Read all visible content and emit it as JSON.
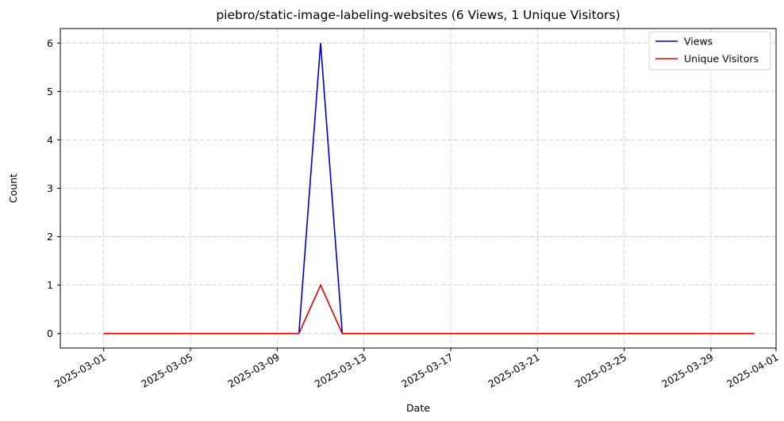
{
  "chart_data": {
    "type": "line",
    "title": "piebro/static-image-labeling-websites (6 Views, 1 Unique Visitors)",
    "xlabel": "Date",
    "ylabel": "Count",
    "x_start": "2025-03-01",
    "x_end": "2025-03-31",
    "xlim": [
      "2025-02-27",
      "2025-04-01"
    ],
    "ylim": [
      -0.3,
      6.3
    ],
    "x_ticks": [
      "2025-03-01",
      "2025-03-05",
      "2025-03-09",
      "2025-03-13",
      "2025-03-17",
      "2025-03-21",
      "2025-03-25",
      "2025-03-29",
      "2025-04-01"
    ],
    "y_ticks": [
      "0",
      "1",
      "2",
      "3",
      "4",
      "5",
      "6"
    ],
    "grid": true,
    "legend_position": "top-right",
    "series": [
      {
        "name": "Views",
        "color": "#0000cc",
        "values": [
          0,
          0,
          0,
          0,
          0,
          0,
          0,
          0,
          0,
          0,
          6,
          0,
          0,
          0,
          0,
          0,
          0,
          0,
          0,
          0,
          0,
          0,
          0,
          0,
          0,
          0,
          0,
          0,
          0,
          0,
          0
        ]
      },
      {
        "name": "Unique Visitors",
        "color": "#dd0000",
        "values": [
          0,
          0,
          0,
          0,
          0,
          0,
          0,
          0,
          0,
          0,
          1,
          0,
          0,
          0,
          0,
          0,
          0,
          0,
          0,
          0,
          0,
          0,
          0,
          0,
          0,
          0,
          0,
          0,
          0,
          0,
          0
        ]
      }
    ]
  }
}
